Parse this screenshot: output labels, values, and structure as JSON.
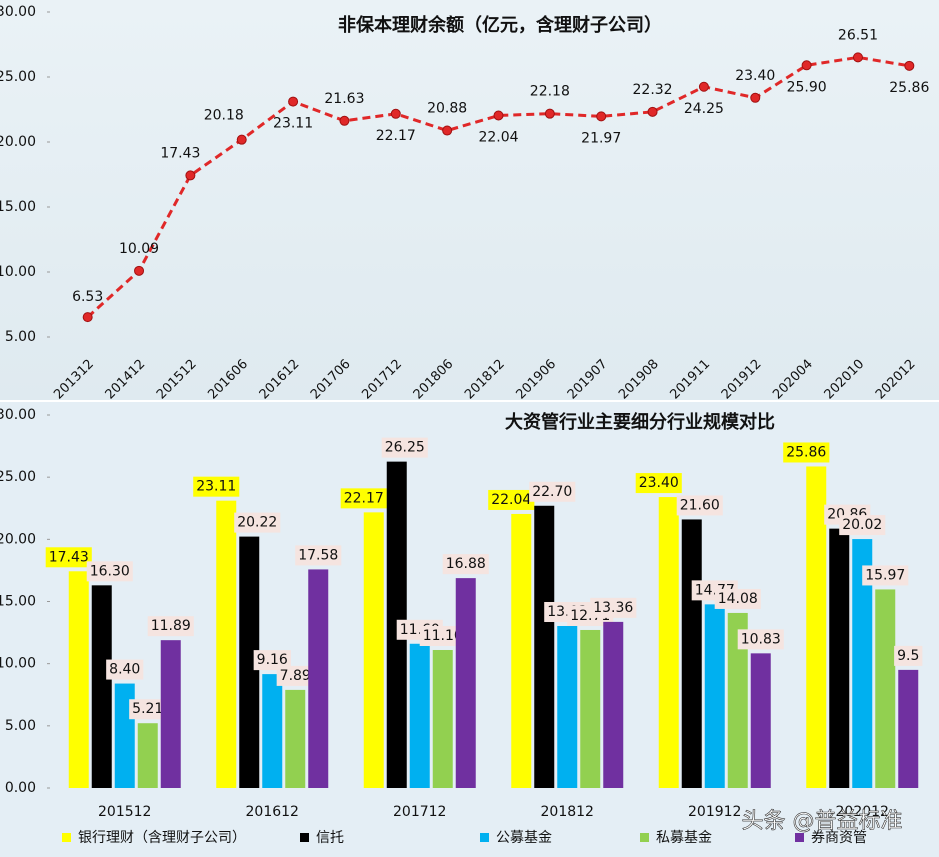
{
  "chart_data": [
    {
      "type": "line",
      "title": "非保本理财余额（亿元，含理财子公司）",
      "categories": [
        "201312",
        "201412",
        "201512",
        "201606",
        "201612",
        "201706",
        "201712",
        "201806",
        "201812",
        "201906",
        "201907",
        "201908",
        "201911",
        "201912",
        "202004",
        "202010",
        "202012"
      ],
      "values": [
        6.53,
        10.09,
        17.43,
        20.18,
        23.11,
        21.63,
        22.17,
        20.88,
        22.04,
        22.18,
        21.97,
        22.32,
        24.25,
        23.4,
        25.9,
        26.51,
        25.86
      ],
      "value_labels": [
        "6.53",
        "10.09",
        "17.43",
        "20.18",
        "23.11",
        "21.63",
        "22.17",
        "20.88",
        "22.04",
        "22.18",
        "21.97",
        "22.32",
        "24.25",
        "23.40",
        "25.90",
        "26.51",
        "25.86"
      ],
      "color": "#e02828",
      "ylim": [
        4,
        30
      ],
      "yticks": [
        {
          "value": 5,
          "label": "5.00"
        },
        {
          "value": 10,
          "label": "10.00"
        },
        {
          "value": 15,
          "label": "15.00"
        },
        {
          "value": 20,
          "label": "20.00"
        },
        {
          "value": 25,
          "label": "25.00"
        },
        {
          "value": 30,
          "label": "30.00"
        }
      ]
    },
    {
      "type": "bar",
      "title": "大资管行业主要细分行业规模对比",
      "categories": [
        "201512",
        "201612",
        "201712",
        "201812",
        "201912",
        "202012"
      ],
      "series": [
        {
          "name": "银行理财（含理财子公司）",
          "color": "#ffff00",
          "values": [
            17.43,
            23.11,
            22.17,
            22.04,
            23.4,
            25.86
          ],
          "value_labels": [
            "17.43",
            "23.11",
            "22.17",
            "22.04",
            "23.40",
            "25.86"
          ]
        },
        {
          "name": "信托",
          "color": "#000000",
          "values": [
            16.3,
            20.22,
            26.25,
            22.7,
            21.6,
            20.86
          ],
          "value_labels": [
            "16.30",
            "20.22",
            "26.25",
            "22.70",
            "21.60",
            "20.86"
          ]
        },
        {
          "name": "公募基金",
          "color": "#00b0f0",
          "values": [
            8.4,
            9.16,
            11.6,
            13.03,
            14.77,
            20.02
          ],
          "value_labels": [
            "8.40",
            "9.16",
            "11.60",
            "13.03",
            "14.77",
            "20.02"
          ]
        },
        {
          "name": "私募基金",
          "color": "#92d050",
          "values": [
            5.21,
            7.89,
            11.1,
            12.71,
            14.08,
            15.97
          ],
          "value_labels": [
            "5.21",
            "7.89",
            "11.10",
            "12.71",
            "14.08",
            "15.97"
          ]
        },
        {
          "name": "券商资管",
          "color": "#7030a0",
          "values": [
            11.89,
            17.58,
            16.88,
            13.36,
            10.83,
            9.5
          ],
          "value_labels": [
            "11.89",
            "17.58",
            "16.88",
            "13.36",
            "10.83",
            "9.5"
          ]
        }
      ],
      "ylim": [
        0,
        30
      ],
      "yticks": [
        {
          "value": 0,
          "label": "0.00"
        },
        {
          "value": 5,
          "label": "5.00"
        },
        {
          "value": 10,
          "label": "10.00"
        },
        {
          "value": 15,
          "label": "15.00"
        },
        {
          "value": 20,
          "label": "20.00"
        },
        {
          "value": 25,
          "label": "25.00"
        },
        {
          "value": 30,
          "label": "30.00"
        }
      ]
    }
  ],
  "watermark": "头条 @普益标准"
}
